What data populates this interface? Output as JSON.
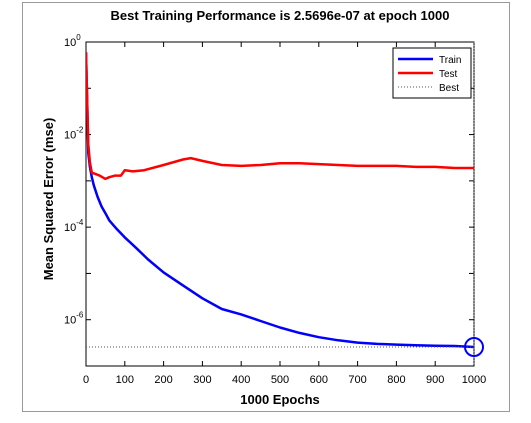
{
  "chart_data": {
    "type": "line",
    "title": "Best Training Performance is 2.5696e-07 at epoch 1000",
    "xlabel": "1000 Epochs",
    "ylabel": "Mean Squared Error  (mse)",
    "y_scale": "log",
    "xlim": [
      0,
      1000
    ],
    "ylim": [
      1e-07,
      1
    ],
    "x_ticks": [
      0,
      100,
      200,
      300,
      400,
      500,
      600,
      700,
      800,
      900,
      1000
    ],
    "x_tick_labels": [
      "0",
      "100",
      "200",
      "300",
      "400",
      "500",
      "600",
      "700",
      "800",
      "900",
      "1000"
    ],
    "y_ticks": [
      1e-06,
      0.0001,
      0.01,
      1
    ],
    "y_tick_labels": [
      {
        "base": "10",
        "exp": "-6"
      },
      {
        "base": "10",
        "exp": "-4"
      },
      {
        "base": "10",
        "exp": "-2"
      },
      {
        "base": "10",
        "exp": "0"
      }
    ],
    "grid": false,
    "legend_position": "top-right",
    "series": [
      {
        "name": "Train",
        "color": "#0000ff",
        "style": "solid",
        "x": [
          0,
          3,
          6,
          10,
          15,
          20,
          30,
          40,
          50,
          60,
          80,
          100,
          130,
          160,
          200,
          250,
          300,
          350,
          400,
          450,
          500,
          550,
          600,
          650,
          700,
          750,
          800,
          850,
          900,
          950,
          1000
        ],
        "y": [
          0.6,
          0.05,
          0.004,
          0.002,
          0.0012,
          0.0008,
          0.00045,
          0.00028,
          0.0002,
          0.00014,
          9e-05,
          6e-05,
          3.5e-05,
          2e-05,
          1.05e-05,
          5.5e-06,
          2.9e-06,
          1.7e-06,
          1.3e-06,
          9.4e-07,
          6.8e-07,
          5.2e-07,
          4.2e-07,
          3.6e-07,
          3.2e-07,
          3e-07,
          2.9e-07,
          2.8e-07,
          2.75e-07,
          2.7e-07,
          2.57e-07
        ]
      },
      {
        "name": "Test",
        "color": "#ff0000",
        "style": "solid",
        "x": [
          0,
          3,
          6,
          10,
          15,
          25,
          35,
          50,
          60,
          75,
          90,
          100,
          120,
          150,
          200,
          250,
          270,
          300,
          350,
          400,
          450,
          500,
          550,
          600,
          650,
          700,
          750,
          800,
          850,
          900,
          950,
          1000
        ],
        "y": [
          0.6,
          0.05,
          0.006,
          0.0025,
          0.0015,
          0.0014,
          0.0013,
          0.0011,
          0.0012,
          0.0013,
          0.0013,
          0.0017,
          0.0016,
          0.0017,
          0.0022,
          0.0029,
          0.0031,
          0.0027,
          0.0022,
          0.0021,
          0.0022,
          0.0024,
          0.0024,
          0.0023,
          0.0022,
          0.0021,
          0.0021,
          0.0021,
          0.002,
          0.002,
          0.0019,
          0.0019
        ]
      },
      {
        "name": "Best",
        "color": "#555555",
        "style": "dotted",
        "best_value": 2.5696e-07,
        "best_epoch": 1000
      }
    ]
  }
}
